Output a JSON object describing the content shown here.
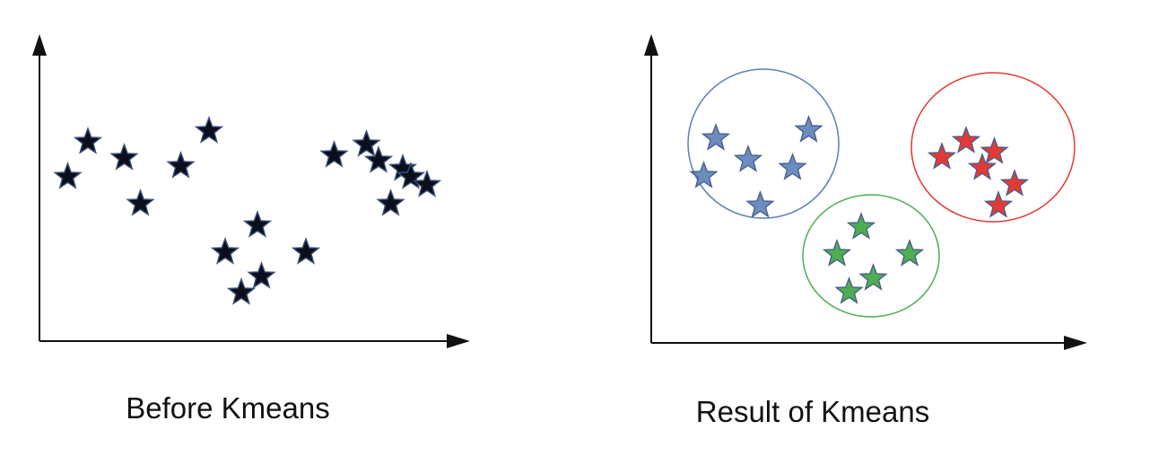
{
  "panels": [
    {
      "caption": "Before Kmeans",
      "star_color": "#0b0f1c",
      "points": [
        {
          "id": "s1",
          "x": 1.2,
          "y": 7.4
        },
        {
          "id": "s2",
          "x": 2.1,
          "y": 6.8
        },
        {
          "id": "s3",
          "x": 0.7,
          "y": 6.1
        },
        {
          "id": "s4",
          "x": 3.5,
          "y": 6.5
        },
        {
          "id": "s5",
          "x": 4.2,
          "y": 7.8
        },
        {
          "id": "s6",
          "x": 2.5,
          "y": 5.1
        },
        {
          "id": "s7",
          "x": 5.4,
          "y": 4.3
        },
        {
          "id": "s8",
          "x": 4.6,
          "y": 3.3
        },
        {
          "id": "s9",
          "x": 6.6,
          "y": 3.3
        },
        {
          "id": "s10",
          "x": 5.5,
          "y": 2.4
        },
        {
          "id": "s11",
          "x": 5.0,
          "y": 1.8
        },
        {
          "id": "s12",
          "x": 7.3,
          "y": 6.9
        },
        {
          "id": "s13",
          "x": 8.1,
          "y": 7.3
        },
        {
          "id": "s14",
          "x": 8.4,
          "y": 6.7
        },
        {
          "id": "s15",
          "x": 9.0,
          "y": 6.4
        },
        {
          "id": "s16",
          "x": 9.2,
          "y": 6.1
        },
        {
          "id": "s17",
          "x": 8.7,
          "y": 5.1
        },
        {
          "id": "s18",
          "x": 9.6,
          "y": 5.8
        }
      ]
    },
    {
      "caption": "Result of Kmeans",
      "clusters": [
        {
          "color": "#6c8ebf",
          "points": [
            {
              "id": "b1",
              "x": 1.6,
              "y": 7.6
            },
            {
              "id": "b2",
              "x": 3.9,
              "y": 7.9
            },
            {
              "id": "b3",
              "x": 2.4,
              "y": 6.8
            },
            {
              "id": "b4",
              "x": 3.5,
              "y": 6.5
            },
            {
              "id": "b5",
              "x": 1.3,
              "y": 6.2
            },
            {
              "id": "b6",
              "x": 2.7,
              "y": 5.1
            }
          ]
        },
        {
          "color": "#4caf50",
          "points": [
            {
              "id": "g1",
              "x": 5.2,
              "y": 4.3
            },
            {
              "id": "g2",
              "x": 4.6,
              "y": 3.3
            },
            {
              "id": "g3",
              "x": 6.4,
              "y": 3.3
            },
            {
              "id": "g4",
              "x": 5.5,
              "y": 2.4
            },
            {
              "id": "g5",
              "x": 4.9,
              "y": 1.9
            }
          ]
        },
        {
          "color": "#e53935",
          "points": [
            {
              "id": "r1",
              "x": 7.2,
              "y": 6.9
            },
            {
              "id": "r2",
              "x": 7.8,
              "y": 7.5
            },
            {
              "id": "r3",
              "x": 8.5,
              "y": 7.1
            },
            {
              "id": "r4",
              "x": 8.2,
              "y": 6.5
            },
            {
              "id": "r5",
              "x": 9.0,
              "y": 5.9
            },
            {
              "id": "r6",
              "x": 8.6,
              "y": 5.1
            }
          ]
        }
      ]
    }
  ]
}
